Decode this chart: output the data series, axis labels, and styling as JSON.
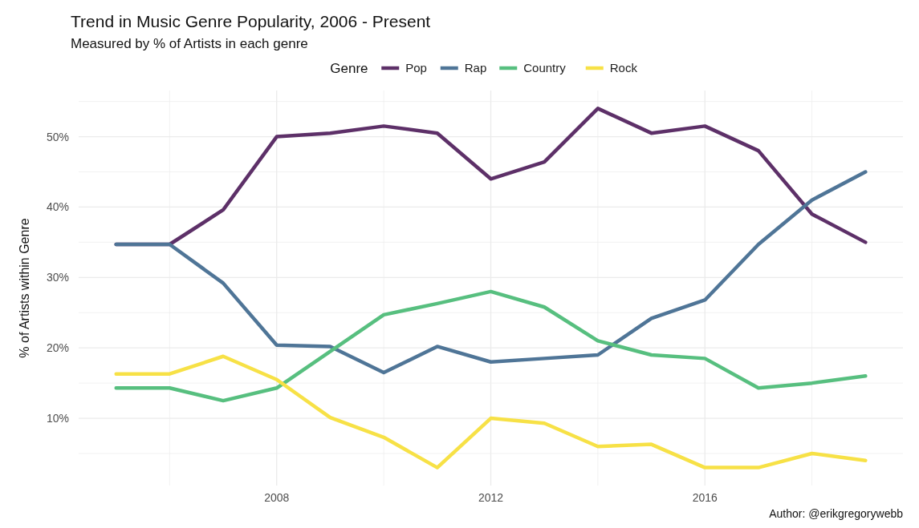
{
  "chart_data": {
    "type": "line",
    "title": "Trend in Music Genre Popularity, 2006 - Present",
    "subtitle": "Measured by % of Artists in each genre",
    "ylabel": "% of Artists within Genre",
    "legend_title": "Genre",
    "legend": "top",
    "grid": true,
    "line_style": "solid",
    "annotations": [
      "Author: @erikgregorywebb"
    ],
    "x": [
      2005,
      2006,
      2007,
      2008,
      2009,
      2010,
      2011,
      2012,
      2013,
      2014,
      2015,
      2016,
      2017,
      2018,
      2019
    ],
    "xlim": [
      2004.3,
      2019.7
    ],
    "xticks": [
      {
        "value": 2006,
        "label": null
      },
      2008,
      {
        "value": 2010,
        "label": null
      },
      2012,
      {
        "value": 2014,
        "label": null
      },
      2016,
      {
        "value": 2018,
        "label": null
      }
    ],
    "ylim": [
      0.45,
      56.55
    ],
    "yticks": [
      {
        "value": 5,
        "label": null
      },
      {
        "value": 10,
        "label": "10%"
      },
      {
        "value": 15,
        "label": null
      },
      {
        "value": 20,
        "label": "20%"
      },
      {
        "value": 25,
        "label": null
      },
      {
        "value": 30,
        "label": "30%"
      },
      {
        "value": 35,
        "label": null
      },
      {
        "value": 40,
        "label": "40%"
      },
      {
        "value": 45,
        "label": null
      },
      {
        "value": 50,
        "label": "50%"
      },
      {
        "value": 55,
        "label": null
      }
    ],
    "series": [
      {
        "name": "Pop",
        "color": "#5d3068",
        "values": [
          34.7,
          34.7,
          39.6,
          50,
          50.5,
          51.5,
          50.5,
          44,
          46.4,
          54,
          50.5,
          51.5,
          48,
          39,
          35
        ]
      },
      {
        "name": "Rap",
        "color": "#4f7597",
        "values": [
          34.7,
          34.7,
          29.2,
          20.4,
          20.2,
          16.5,
          20.2,
          18,
          18.5,
          19,
          24.2,
          26.8,
          34.7,
          41,
          45
        ]
      },
      {
        "name": "Country",
        "color": "#57bf7f",
        "values": [
          14.3,
          14.3,
          12.5,
          14.3,
          19.5,
          24.7,
          26.3,
          28,
          25.8,
          21,
          19,
          18.5,
          14.3,
          15,
          16
        ]
      },
      {
        "name": "Rock",
        "color": "#f7e146",
        "values": [
          16.3,
          16.3,
          18.8,
          15.5,
          10.1,
          7.3,
          3,
          10,
          9.3,
          6,
          6.3,
          3,
          3,
          5,
          4
        ]
      }
    ]
  }
}
